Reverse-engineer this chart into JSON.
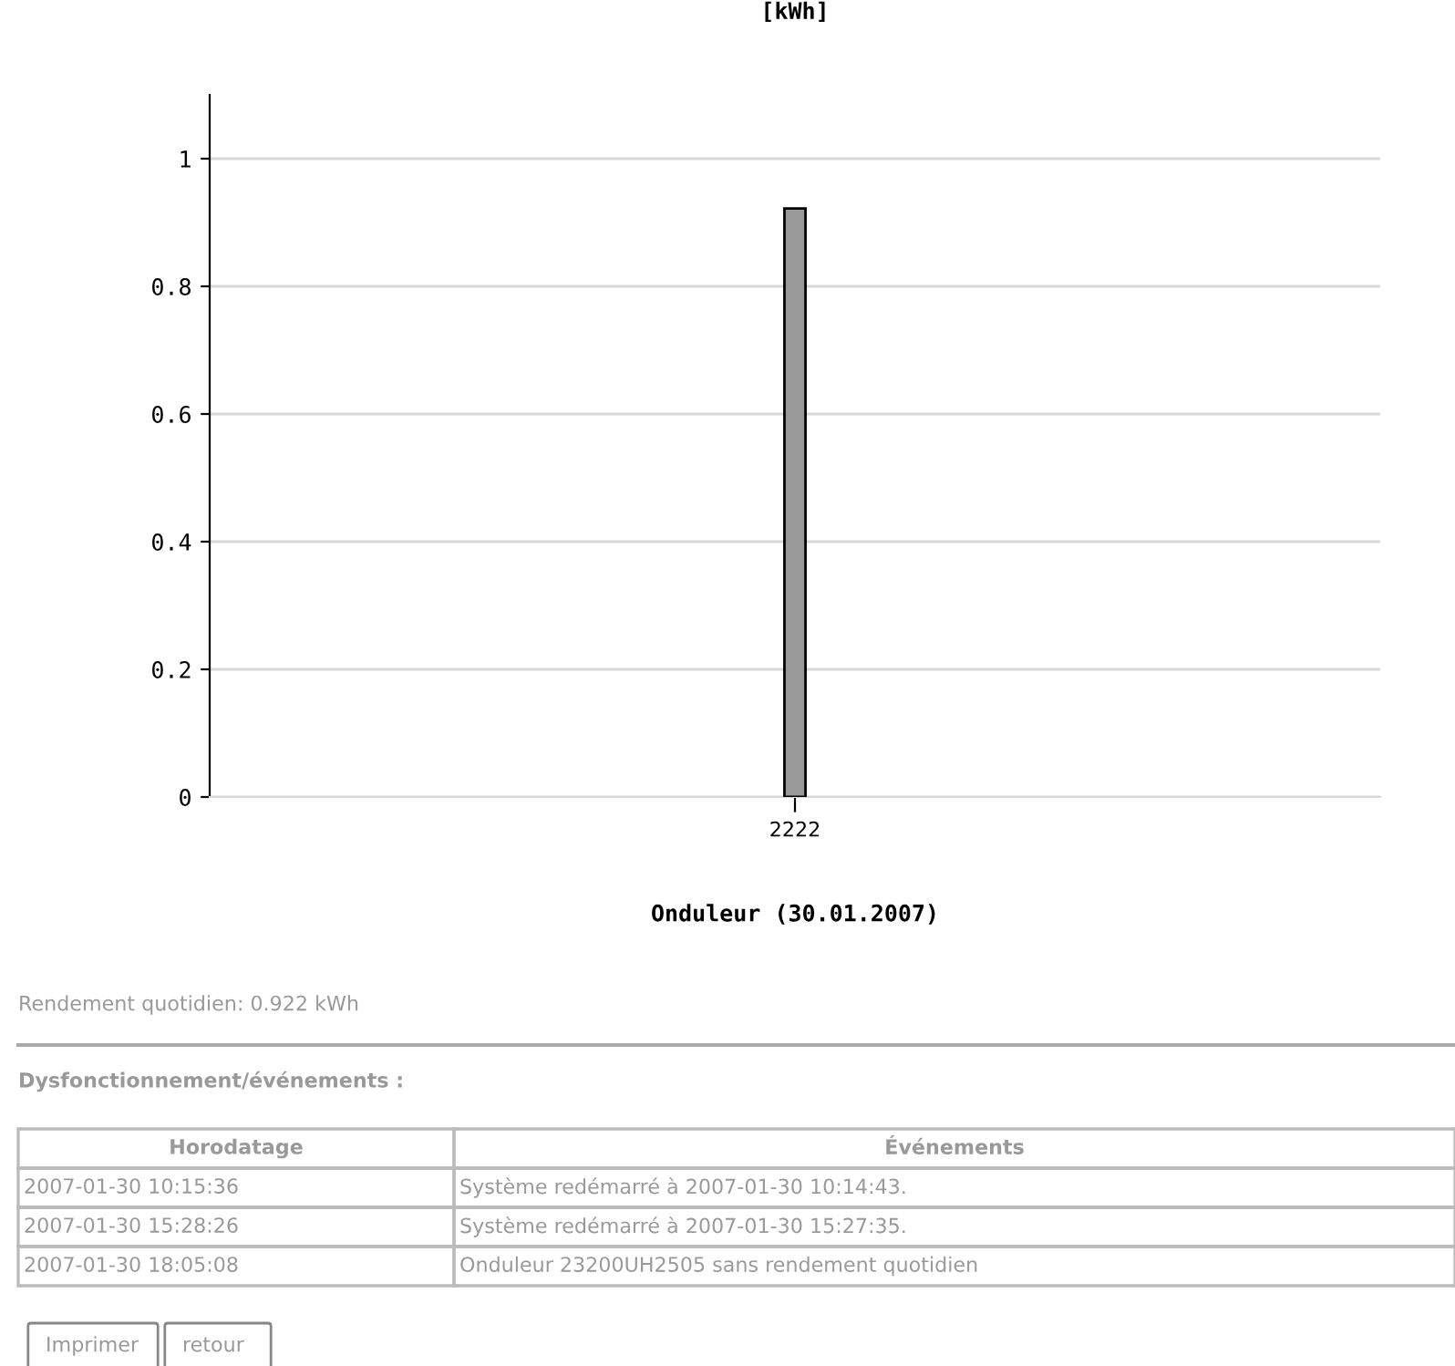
{
  "chart_data": {
    "type": "bar",
    "title": "[kWh]",
    "xlabel": "Onduleur (30.01.2007)",
    "categories": [
      "2222"
    ],
    "values": [
      0.922
    ],
    "color": "#999999",
    "ylim": [
      0,
      1.1
    ],
    "yticks": [
      0,
      0.2,
      0.4,
      0.6,
      0.8,
      1
    ],
    "grid": "y",
    "annotations": [
      "Rendement quotidien: 0.922 kWh",
      "Dysfonctionnement/événements :",
      "Horodatage",
      "Événements",
      "2007-01-30 10:15:36",
      "Système redémarré à 2007-01-30 10:14:43.",
      "2007-01-30 15:28:26",
      "Système redémarré à 2007-01-30 15:27:35.",
      "2007-01-30 18:05:08",
      "Onduleur 23200UH2505 sans rendement quotidien",
      "Imprimer",
      "retour"
    ]
  }
}
